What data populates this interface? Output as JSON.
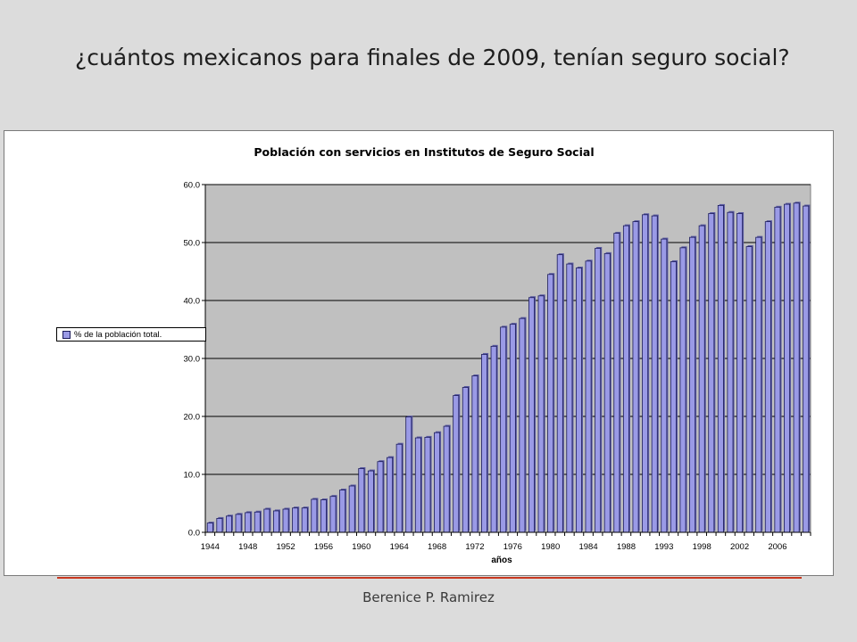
{
  "slide": {
    "question": "¿cuántos mexicanos para finales de 2009, tenían seguro social?",
    "author": "Berenice P. Ramirez"
  },
  "chart_data": {
    "type": "bar",
    "title": "Población con servicios en Institutos de Seguro Social",
    "xlabel": "años",
    "ylabel": "",
    "ylim": [
      0,
      60
    ],
    "yticks": [
      "0.0",
      "10.0",
      "20.0",
      "30.0",
      "40.0",
      "50.0",
      "60.0"
    ],
    "grid": true,
    "legend_position": "left",
    "colors": {
      "bar": "#9a9ae6",
      "bar_edge": "#1a1a5a",
      "plot_bg": "#c0c0c0",
      "grid": "#000000"
    },
    "x_tick_labels": [
      "1944",
      "1948",
      "1952",
      "1956",
      "1960",
      "1964",
      "1968",
      "1972",
      "1976",
      "1980",
      "1984",
      "1988",
      "1993",
      "1998",
      "2002",
      "2006"
    ],
    "x_tick_label_positions": [
      0,
      4,
      8,
      12,
      16,
      20,
      24,
      28,
      32,
      36,
      40,
      44,
      48,
      52,
      56,
      60
    ],
    "series": [
      {
        "name": "% de la población total.",
        "values": [
          1.6,
          2.4,
          2.8,
          3.1,
          3.4,
          3.5,
          4.0,
          3.7,
          4.0,
          4.2,
          4.2,
          5.7,
          5.6,
          6.2,
          7.3,
          8.0,
          11.0,
          10.6,
          12.2,
          12.9,
          15.2,
          19.9,
          16.3,
          16.4,
          17.2,
          18.3,
          23.6,
          25.0,
          27.0,
          30.7,
          32.1,
          35.4,
          35.9,
          36.9,
          40.5,
          40.8,
          44.5,
          47.9,
          46.3,
          45.6,
          46.8,
          49.0,
          48.1,
          51.6,
          52.9,
          53.6,
          54.8,
          54.6,
          50.6,
          46.7,
          49.1,
          50.9,
          52.9,
          55.0,
          56.4,
          55.2,
          55.0,
          49.3,
          50.9,
          53.6,
          56.1,
          56.6,
          56.8,
          56.3
        ]
      }
    ]
  }
}
